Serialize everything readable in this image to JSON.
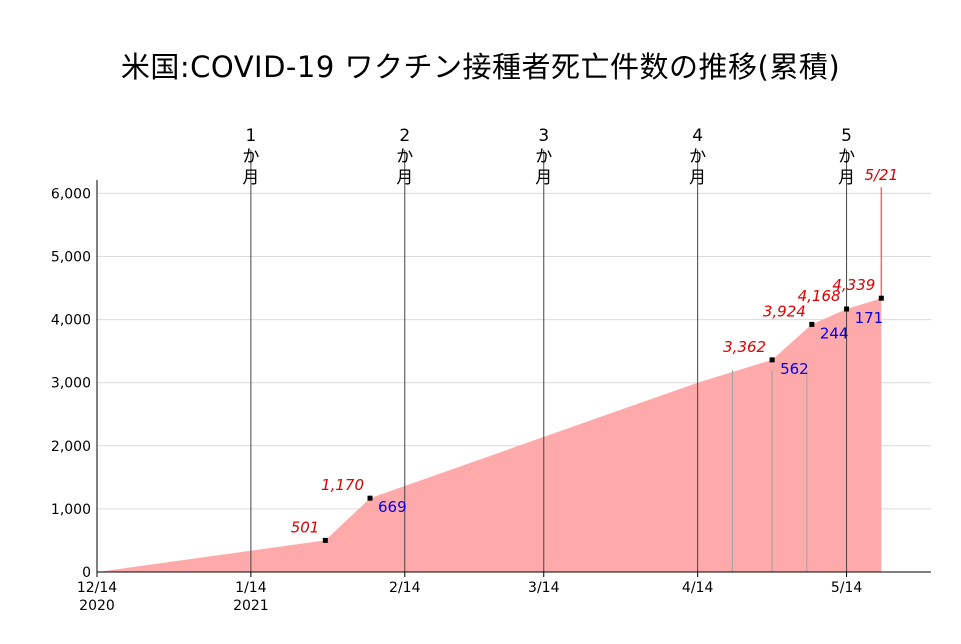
{
  "chart_data": {
    "type": "area",
    "title": "米国:COVID-19 ワクチン接種者死亡件数の推移(累積)",
    "xlabel": "",
    "ylabel": "",
    "ylim": [
      0,
      6000
    ],
    "yticks": [
      "0",
      "1,000",
      "2,000",
      "3,000",
      "4,000",
      "5,000",
      "6,000"
    ],
    "x_start": "2020-12-14",
    "x_end": "2021-05-31",
    "x_tick_labels": [
      {
        "date": "2020-12-14",
        "line1": "12/14",
        "line2": "2020"
      },
      {
        "date": "2021-01-14",
        "line1": "1/14",
        "line2": "2021"
      },
      {
        "date": "2021-02-14",
        "line1": "2/14",
        "line2": ""
      },
      {
        "date": "2021-03-14",
        "line1": "3/14",
        "line2": ""
      },
      {
        "date": "2021-04-14",
        "line1": "4/14",
        "line2": ""
      },
      {
        "date": "2021-05-14",
        "line1": "5/14",
        "line2": ""
      }
    ],
    "month_markers": [
      {
        "date": "2021-01-14",
        "chars": [
          "1",
          "か",
          "月"
        ]
      },
      {
        "date": "2021-02-14",
        "chars": [
          "2",
          "か",
          "月"
        ]
      },
      {
        "date": "2021-03-14",
        "chars": [
          "3",
          "か",
          "月"
        ]
      },
      {
        "date": "2021-04-14",
        "chars": [
          "4",
          "か",
          "月"
        ]
      },
      {
        "date": "2021-05-14",
        "chars": [
          "5",
          "か",
          "月"
        ]
      }
    ],
    "extra_vlines": [
      "2021-04-21",
      "2021-04-29",
      "2021-05-06"
    ],
    "series": [
      {
        "points": [
          {
            "x": "2020-12-14",
            "y": 0
          },
          {
            "x": "2021-01-29",
            "y": 501
          },
          {
            "x": "2021-02-07",
            "y": 1170
          },
          {
            "x": "2021-04-14",
            "y": 3000
          },
          {
            "x": "2021-04-29",
            "y": 3362
          },
          {
            "x": "2021-05-07",
            "y": 3924
          },
          {
            "x": "2021-05-14",
            "y": 4168
          },
          {
            "x": "2021-05-21",
            "y": 4339
          }
        ]
      }
    ],
    "markers": [
      {
        "x": "2021-01-29",
        "y": 501,
        "cum_label": "501",
        "inc_label": ""
      },
      {
        "x": "2021-02-07",
        "y": 1170,
        "cum_label": "1,170",
        "inc_label": "669"
      },
      {
        "x": "2021-04-29",
        "y": 3362,
        "cum_label": "3,362",
        "inc_label": "562"
      },
      {
        "x": "2021-05-07",
        "y": 3924,
        "cum_label": "3,924",
        "inc_label": "244"
      },
      {
        "x": "2021-05-14",
        "y": 4168,
        "cum_label": "4,168",
        "inc_label": "171"
      },
      {
        "x": "2021-05-21",
        "y": 4339,
        "cum_label": "4,339",
        "inc_label": ""
      }
    ],
    "latest_marker": {
      "date": "2021-05-21",
      "label": "5/21",
      "y": 6100
    },
    "colors": {
      "fill": "#ffaaaa",
      "cum_label": "#e00000",
      "inc_label": "#0000ee",
      "latest_line": "#ff6666"
    }
  }
}
